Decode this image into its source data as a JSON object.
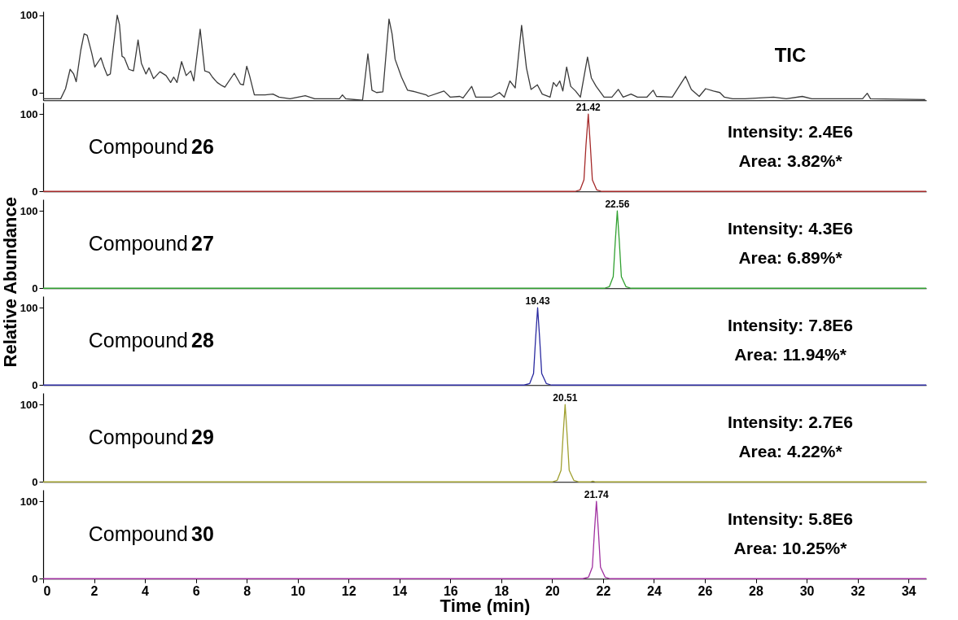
{
  "chart_data": [
    {
      "type": "line",
      "ylabel": "Relative Abundance",
      "xlim": [
        0,
        34.7
      ],
      "ylim": [
        -10,
        105
      ],
      "yticks": [
        0,
        100
      ],
      "tick_labels": "y",
      "x": [
        0,
        0.69,
        0.88,
        1.06,
        1.2,
        1.3,
        1.48,
        1.61,
        1.73,
        1.91,
        2.03,
        2.27,
        2.4,
        2.52,
        2.64,
        2.76,
        2.91,
        3.0,
        3.1,
        3.19,
        3.37,
        3.55,
        3.73,
        3.86,
        4.04,
        4.16,
        4.34,
        4.59,
        4.83,
        5.01,
        5.13,
        5.26,
        5.44,
        5.62,
        5.8,
        5.92,
        6.17,
        6.35,
        6.53,
        6.65,
        6.84,
        7.02,
        7.14,
        7.51,
        7.75,
        7.87,
        8.0,
        8.11,
        8.3,
        8.72,
        9.03,
        9.27,
        9.7,
        10.3,
        10.67,
        11.64,
        11.76,
        11.89,
        12.55,
        12.76,
        12.92,
        13.1,
        13.35,
        13.59,
        13.71,
        13.83,
        14.08,
        14.32,
        14.62,
        15.05,
        15.13,
        15.75,
        16.0,
        16.37,
        16.5,
        16.84,
        17.0,
        17.62,
        17.93,
        18.12,
        18.34,
        18.55,
        18.8,
        18.99,
        19.17,
        19.42,
        19.61,
        19.92,
        20.05,
        20.17,
        20.3,
        20.42,
        20.57,
        20.73,
        20.92,
        21.11,
        21.39,
        21.54,
        21.73,
        22.04,
        22.35,
        22.6,
        22.79,
        23.1,
        23.35,
        23.72,
        23.97,
        24.1,
        24.72,
        25.24,
        25.47,
        25.78,
        26.03,
        26.34,
        26.59,
        26.77,
        27.09,
        27.58,
        28.7,
        29.2,
        29.83,
        30.2,
        32.2,
        32.38,
        32.51,
        34.66
      ],
      "series": [
        {
          "name": "TIC",
          "color": "#3a3a3a",
          "values": [
            -8,
            -8,
            5,
            30,
            24,
            14,
            55,
            76,
            74,
            51,
            33,
            45,
            32,
            22,
            24,
            59,
            100,
            88,
            47,
            45,
            30,
            28,
            68,
            38,
            24,
            32,
            18,
            27,
            22,
            13,
            20,
            13,
            40,
            22,
            28,
            15,
            82,
            28,
            26,
            20,
            13,
            9,
            7,
            25,
            11,
            10,
            34,
            22,
            -3,
            -3,
            -2,
            -6,
            -8,
            -4,
            -8,
            -8,
            -3,
            -8,
            -10,
            50,
            3,
            0,
            1,
            95,
            76,
            43,
            20,
            3,
            1,
            -3,
            -5,
            2,
            -6,
            -5,
            -7,
            8,
            -6,
            -6,
            0,
            -6,
            15,
            6,
            87,
            32,
            4,
            10,
            -2,
            -6,
            13,
            8,
            15,
            2,
            33,
            8,
            2,
            -6,
            46,
            19,
            8,
            -6,
            -6,
            4,
            -6,
            -2,
            -6,
            -6,
            3,
            -5,
            -6,
            21,
            4,
            -5,
            5,
            2,
            0,
            -6,
            -8,
            -8,
            -6,
            -8,
            -5,
            -8,
            -8,
            -1,
            -8,
            -9
          ]
        }
      ]
    },
    {
      "type": "line",
      "xlim": [
        0,
        34.7
      ],
      "ylim": [
        0,
        115
      ],
      "yticks": [
        0,
        100
      ],
      "tick_labels": "y",
      "x": [
        0,
        20.9,
        21.1,
        21.25,
        21.33,
        21.42,
        21.5,
        21.58,
        21.75,
        21.95,
        34.7
      ],
      "series": [
        {
          "name": "Compound 26",
          "color": "#a52a2a",
          "values": [
            0,
            0,
            2,
            15,
            60,
            100,
            60,
            15,
            2,
            0,
            0
          ]
        }
      ],
      "annotations": [
        "Intensity: 2.4E6",
        "Area: 3.82%*",
        {
          "text": "21.42",
          "x": 21.42,
          "y": 100
        }
      ]
    },
    {
      "type": "line",
      "xlim": [
        0,
        34.7
      ],
      "ylim": [
        0,
        115
      ],
      "yticks": [
        0,
        100
      ],
      "tick_labels": "y",
      "x": [
        0,
        22.05,
        22.25,
        22.4,
        22.48,
        22.56,
        22.64,
        22.72,
        22.9,
        23.1,
        34.7
      ],
      "series": [
        {
          "name": "Compound 27",
          "color": "#30a030",
          "values": [
            0,
            0,
            2,
            15,
            60,
            100,
            60,
            15,
            2,
            0,
            0
          ]
        }
      ],
      "annotations": [
        "Intensity: 4.3E6",
        "Area: 6.89%*",
        {
          "text": "22.56",
          "x": 22.56,
          "y": 100
        }
      ]
    },
    {
      "type": "line",
      "xlim": [
        0,
        34.7
      ],
      "ylim": [
        0,
        115
      ],
      "yticks": [
        0,
        100
      ],
      "tick_labels": "y",
      "x": [
        0,
        18.9,
        19.12,
        19.27,
        19.35,
        19.43,
        19.51,
        19.59,
        19.77,
        19.97,
        34.7
      ],
      "series": [
        {
          "name": "Compound 28",
          "color": "#2a2aa0",
          "values": [
            0,
            0,
            2,
            15,
            60,
            100,
            60,
            15,
            2,
            0,
            0
          ]
        }
      ],
      "annotations": [
        "Intensity: 7.8E6",
        "Area: 11.94%*",
        {
          "text": "19.43",
          "x": 19.43,
          "y": 100
        }
      ]
    },
    {
      "type": "line",
      "xlim": [
        0,
        34.7
      ],
      "ylim": [
        0,
        115
      ],
      "yticks": [
        0,
        100
      ],
      "tick_labels": "y",
      "x": [
        0,
        20.0,
        20.2,
        20.35,
        20.43,
        20.51,
        20.59,
        20.67,
        20.85,
        21.05,
        21.5,
        21.6,
        21.7,
        34.7
      ],
      "series": [
        {
          "name": "Compound 29",
          "color": "#a0a030",
          "values": [
            0,
            0,
            2,
            15,
            60,
            100,
            60,
            15,
            2,
            0,
            0,
            1,
            0,
            0
          ]
        }
      ],
      "annotations": [
        "Intensity: 2.7E6",
        "Area: 4.22%*",
        {
          "text": "20.51",
          "x": 20.51,
          "y": 100
        }
      ]
    },
    {
      "type": "line",
      "xlabel": "Time (min)",
      "xlim": [
        0,
        34.7
      ],
      "xticks": [
        0,
        2,
        4,
        6,
        8,
        10,
        12,
        14,
        16,
        18,
        20,
        22,
        24,
        26,
        28,
        30,
        32,
        34
      ],
      "ylim": [
        0,
        115
      ],
      "yticks": [
        0,
        100
      ],
      "x": [
        0,
        21.2,
        21.43,
        21.58,
        21.66,
        21.74,
        21.82,
        21.9,
        22.08,
        22.28,
        34.7
      ],
      "series": [
        {
          "name": "Compound 30",
          "color": "#a030a0",
          "values": [
            0,
            0,
            2,
            15,
            60,
            100,
            60,
            15,
            2,
            0,
            0
          ]
        }
      ],
      "annotations": [
        "Intensity: 5.8E6",
        "Area: 10.25%*",
        {
          "text": "21.74",
          "x": 21.74,
          "y": 100
        }
      ]
    }
  ]
}
